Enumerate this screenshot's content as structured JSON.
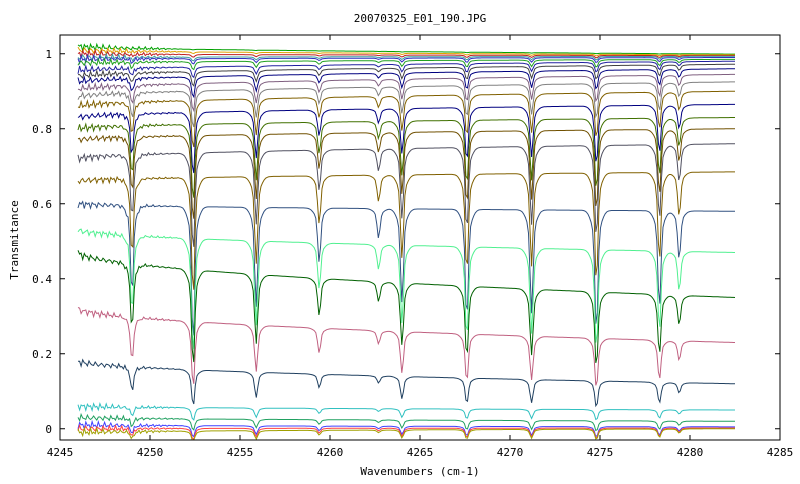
{
  "chart_data": {
    "type": "line",
    "title": "20070325_E01_190.JPG",
    "xlabel": "Wavenumbers (cm-1)",
    "ylabel": "Transmitance",
    "xlim": [
      4245,
      4285
    ],
    "ylim": [
      -0.03,
      1.05
    ],
    "x_ticks": [
      4245,
      4250,
      4255,
      4260,
      4265,
      4270,
      4275,
      4280,
      4285
    ],
    "x_tick_labels": [
      "4245",
      "4250",
      "4255",
      "4260",
      "4265",
      "4270",
      "4275",
      "4280",
      "4285"
    ],
    "y_ticks": [
      0,
      0.2,
      0.4,
      0.6,
      0.8,
      1
    ],
    "y_tick_labels": [
      "0",
      "0.2",
      "0.4",
      "0.6",
      "0.8",
      "1"
    ],
    "grid": false,
    "legend": "none",
    "x_range_of_data": [
      4246,
      4282.5
    ],
    "absorption_lines": [
      4249.0,
      4252.4,
      4255.9,
      4259.4,
      4262.7,
      4264.0,
      4267.6,
      4271.2,
      4274.8,
      4278.3,
      4279.4
    ],
    "line_depths": [
      0.35,
      0.55,
      0.4,
      0.22,
      0.12,
      0.38,
      0.45,
      0.42,
      0.5,
      0.4,
      0.2
    ],
    "series": [
      {
        "color": "#00a000",
        "y_start": 1.02,
        "y_end": 0.999
      },
      {
        "color": "#e0a000",
        "y_start": 1.01,
        "y_end": 0.997
      },
      {
        "color": "#c02020",
        "y_start": 1.0,
        "y_end": 0.995
      },
      {
        "color": "#40a0a0",
        "y_start": 0.99,
        "y_end": 0.993
      },
      {
        "color": "#3030c0",
        "y_start": 0.985,
        "y_end": 0.99
      },
      {
        "color": "#20a020",
        "y_start": 0.975,
        "y_end": 0.985
      },
      {
        "color": "#2020a0",
        "y_start": 0.955,
        "y_end": 0.98
      },
      {
        "color": "#404040",
        "y_start": 0.94,
        "y_end": 0.972
      },
      {
        "color": "#000080",
        "y_start": 0.925,
        "y_end": 0.96
      },
      {
        "color": "#806080",
        "y_start": 0.905,
        "y_end": 0.945
      },
      {
        "color": "#808080",
        "y_start": 0.885,
        "y_end": 0.925
      },
      {
        "color": "#806000",
        "y_start": 0.86,
        "y_end": 0.9
      },
      {
        "color": "#000080",
        "y_start": 0.83,
        "y_end": 0.865
      },
      {
        "color": "#407000",
        "y_start": 0.8,
        "y_end": 0.83
      },
      {
        "color": "#705000",
        "y_start": 0.77,
        "y_end": 0.8
      },
      {
        "color": "#505060",
        "y_start": 0.72,
        "y_end": 0.76
      },
      {
        "color": "#806000",
        "y_start": 0.66,
        "y_end": 0.685
      },
      {
        "color": "#305080",
        "y_start": 0.6,
        "y_end": 0.58
      },
      {
        "color": "#50f090",
        "y_start": 0.53,
        "y_end": 0.47
      },
      {
        "color": "#006000",
        "y_start": 0.47,
        "y_end": 0.35
      },
      {
        "color": "#c06080",
        "y_start": 0.32,
        "y_end": 0.23
      },
      {
        "color": "#204060",
        "y_start": 0.18,
        "y_end": 0.12
      },
      {
        "color": "#30c0c0",
        "y_start": 0.06,
        "y_end": 0.05
      },
      {
        "color": "#20a060",
        "y_start": 0.03,
        "y_end": 0.02
      },
      {
        "color": "#4040ff",
        "y_start": 0.01,
        "y_end": 0.005
      },
      {
        "color": "#ff4040",
        "y_start": 0.0,
        "y_end": 0.002
      },
      {
        "color": "#a0a000",
        "y_start": -0.01,
        "y_end": 0.0
      }
    ]
  }
}
